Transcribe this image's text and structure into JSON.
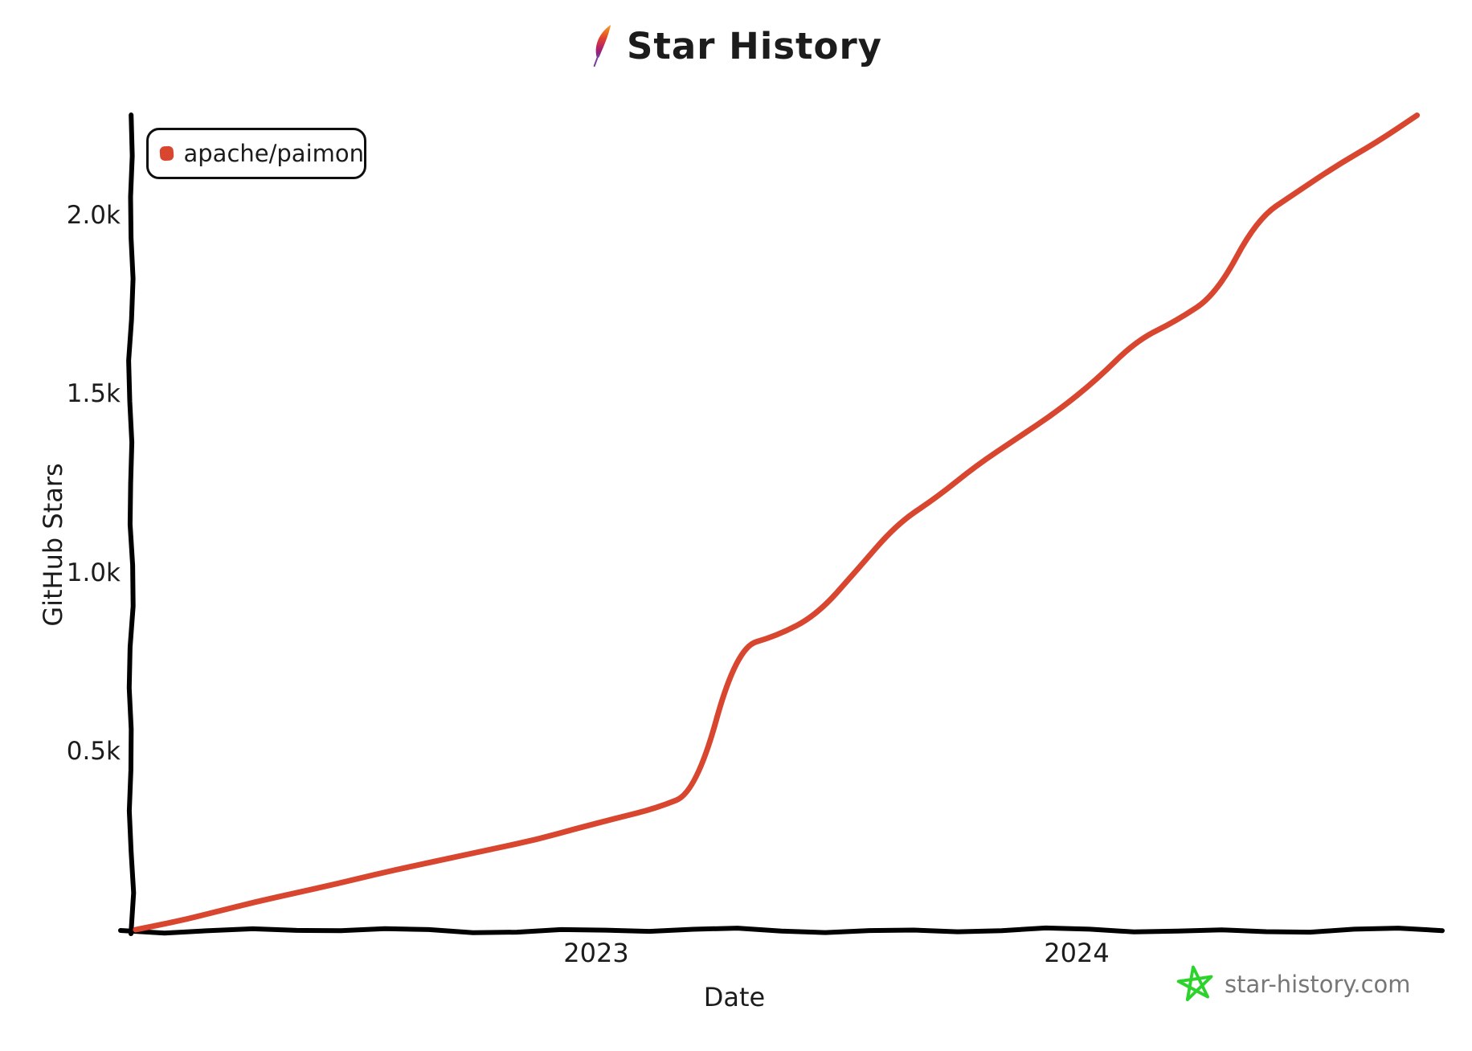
{
  "title": "Star History",
  "legend": {
    "series_label": "apache/paimon"
  },
  "watermark": {
    "text": "star-history.com",
    "text_color": "#777777",
    "star_color": "#2bd32b"
  },
  "colors": {
    "series": "#d8462f",
    "axis": "#000000",
    "text": "#1c1c1c"
  },
  "chart_data": {
    "type": "line",
    "title": "Star History",
    "xlabel": "Date",
    "ylabel": "GitHub Stars",
    "grid": false,
    "legend_position": "top-left",
    "x_range": [
      "2022-01",
      "2024-09"
    ],
    "y_range": [
      0,
      2320
    ],
    "x_ticks": [
      {
        "label": "2023"
      },
      {
        "label": "2024"
      }
    ],
    "y_ticks": [
      {
        "value": 500,
        "label": "0.5k"
      },
      {
        "value": 1000,
        "label": "1.0k"
      },
      {
        "value": 1500,
        "label": "1.5k"
      },
      {
        "value": 2000,
        "label": "2.0k"
      }
    ],
    "series": [
      {
        "name": "apache/paimon",
        "color": "#d8462f",
        "points": [
          [
            "2022-01",
            0
          ],
          [
            "2022-02",
            22
          ],
          [
            "2022-03",
            50
          ],
          [
            "2022-04",
            78
          ],
          [
            "2022-05",
            103
          ],
          [
            "2022-06",
            128
          ],
          [
            "2022-07",
            155
          ],
          [
            "2022-08",
            180
          ],
          [
            "2022-09",
            204
          ],
          [
            "2022-10",
            228
          ],
          [
            "2022-11",
            252
          ],
          [
            "2022-12",
            283
          ],
          [
            "2023-01",
            312
          ],
          [
            "2023-02",
            340
          ],
          [
            "2023-03",
            385
          ],
          [
            "2023-04",
            790
          ],
          [
            "2023-05",
            822
          ],
          [
            "2023-06",
            880
          ],
          [
            "2023-07",
            1005
          ],
          [
            "2023-08",
            1135
          ],
          [
            "2023-09",
            1210
          ],
          [
            "2023-10",
            1300
          ],
          [
            "2023-11",
            1375
          ],
          [
            "2023-12",
            1450
          ],
          [
            "2024-01",
            1540
          ],
          [
            "2024-02",
            1650
          ],
          [
            "2024-03",
            1705
          ],
          [
            "2024-04",
            1780
          ],
          [
            "2024-05",
            1990
          ],
          [
            "2024-06",
            2065
          ],
          [
            "2024-07",
            2140
          ],
          [
            "2024-08",
            2205
          ],
          [
            "2024-09",
            2280
          ]
        ]
      }
    ]
  }
}
